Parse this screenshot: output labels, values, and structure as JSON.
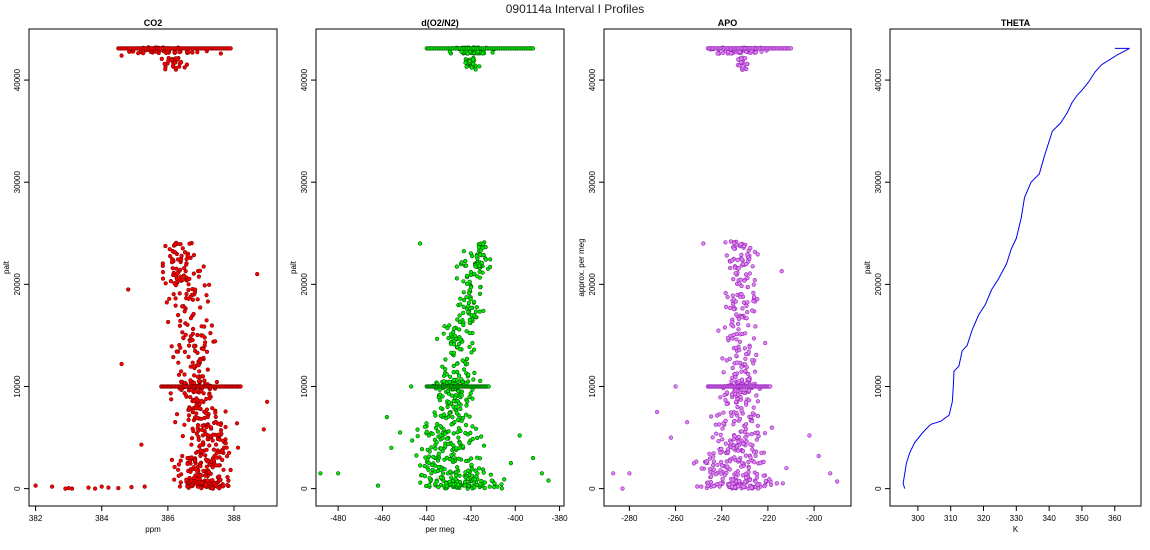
{
  "figure_title": "090114a   Interval I Profiles",
  "chart_data": [
    {
      "type": "scatter",
      "title": "CO2",
      "xlabel": "ppm",
      "ylabel": "palt",
      "xlim": [
        381.8,
        389.3
      ],
      "ylim": [
        -1700,
        45000
      ],
      "xticks": [
        382,
        384,
        386,
        388
      ],
      "yticks": [
        0,
        10000,
        20000,
        30000,
        40000
      ],
      "color": "#ff0000",
      "edge_color": "#7a0000",
      "clusters": [
        {
          "alt": [
            0,
            800
          ],
          "center": 387.1,
          "spread": 0.5,
          "n": 90
        },
        {
          "alt": [
            800,
            3000
          ],
          "center": 387.0,
          "spread": 0.6,
          "n": 80
        },
        {
          "alt": [
            3000,
            6500
          ],
          "center": 387.3,
          "spread": 0.6,
          "n": 90
        },
        {
          "alt": [
            6500,
            9500
          ],
          "center": 386.9,
          "spread": 0.5,
          "n": 60
        },
        {
          "alt": [
            9500,
            10500
          ],
          "center": 386.9,
          "spread": 0.5,
          "n": 40
        },
        {
          "alt": [
            10500,
            16000
          ],
          "center": 386.8,
          "spread": 0.5,
          "n": 70
        },
        {
          "alt": [
            16000,
            21000
          ],
          "center": 386.5,
          "spread": 0.5,
          "n": 60
        },
        {
          "alt": [
            21000,
            24200
          ],
          "center": 386.3,
          "spread": 0.5,
          "n": 50
        },
        {
          "alt": [
            41000,
            42200
          ],
          "center": 386.1,
          "spread": 0.3,
          "n": 25
        },
        {
          "alt": [
            42600,
            43200
          ],
          "center": 385.9,
          "spread": 0.8,
          "n": 70
        }
      ],
      "lines": [
        {
          "alt": 10000,
          "x_from": 385.8,
          "x_to": 388.2
        },
        {
          "alt": 43100,
          "x_from": 384.5,
          "x_to": 387.9
        }
      ],
      "extra_points": [
        {
          "x": 382.0,
          "y": 300
        },
        {
          "x": 382.5,
          "y": 200
        },
        {
          "x": 382.9,
          "y": 0
        },
        {
          "x": 383.0,
          "y": 50
        },
        {
          "x": 383.1,
          "y": 0
        },
        {
          "x": 383.6,
          "y": 100
        },
        {
          "x": 383.8,
          "y": 0
        },
        {
          "x": 384.0,
          "y": 200
        },
        {
          "x": 384.2,
          "y": 100
        },
        {
          "x": 384.5,
          "y": 50
        },
        {
          "x": 384.9,
          "y": 150
        },
        {
          "x": 385.3,
          "y": 200
        },
        {
          "x": 384.8,
          "y": 19500
        },
        {
          "x": 384.6,
          "y": 12200
        },
        {
          "x": 385.2,
          "y": 4300
        },
        {
          "x": 388.7,
          "y": 21000
        },
        {
          "x": 389.0,
          "y": 8500
        },
        {
          "x": 388.9,
          "y": 5800
        },
        {
          "x": 384.6,
          "y": 42400
        },
        {
          "x": 387.6,
          "y": 42600
        }
      ]
    },
    {
      "type": "scatter",
      "title": "d(O2/N2)",
      "xlabel": "per meg",
      "ylabel": "palt",
      "xlim": [
        -490,
        -378
      ],
      "ylim": [
        -1700,
        45000
      ],
      "xticks": [
        -480,
        -460,
        -440,
        -420,
        -400,
        -380
      ],
      "yticks": [
        0,
        10000,
        20000,
        30000,
        40000
      ],
      "color": "#00ee00",
      "edge_color": "#005500",
      "clusters": [
        {
          "alt": [
            0,
            800
          ],
          "center": -425,
          "spread": 12,
          "n": 80
        },
        {
          "alt": [
            800,
            3000
          ],
          "center": -428,
          "spread": 12,
          "n": 80
        },
        {
          "alt": [
            3000,
            6500
          ],
          "center": -430,
          "spread": 11,
          "n": 90
        },
        {
          "alt": [
            6500,
            9500
          ],
          "center": -428,
          "spread": 8,
          "n": 60
        },
        {
          "alt": [
            9500,
            10500
          ],
          "center": -428,
          "spread": 7,
          "n": 40
        },
        {
          "alt": [
            10500,
            16000
          ],
          "center": -426,
          "spread": 7,
          "n": 70
        },
        {
          "alt": [
            16000,
            21000
          ],
          "center": -420,
          "spread": 5,
          "n": 60
        },
        {
          "alt": [
            21000,
            24200
          ],
          "center": -418,
          "spread": 5,
          "n": 50
        },
        {
          "alt": [
            41000,
            42200
          ],
          "center": -420,
          "spread": 2,
          "n": 25
        },
        {
          "alt": [
            42600,
            43200
          ],
          "center": -420,
          "spread": 6,
          "n": 70
        }
      ],
      "lines": [
        {
          "alt": 10000,
          "x_from": -440,
          "x_to": -412
        },
        {
          "alt": 43100,
          "x_from": -440,
          "x_to": -392
        }
      ],
      "extra_points": [
        {
          "x": -488,
          "y": 1500
        },
        {
          "x": -480,
          "y": 1500
        },
        {
          "x": -462,
          "y": 300
        },
        {
          "x": -458,
          "y": 7000
        },
        {
          "x": -456,
          "y": 4000
        },
        {
          "x": -452,
          "y": 5500
        },
        {
          "x": -447,
          "y": 10000
        },
        {
          "x": -443,
          "y": 24000
        },
        {
          "x": -385,
          "y": 800
        },
        {
          "x": -388,
          "y": 1500
        },
        {
          "x": -392,
          "y": 3000
        },
        {
          "x": -398,
          "y": 5200
        },
        {
          "x": -402,
          "y": 2500
        },
        {
          "x": -405,
          "y": 900
        }
      ]
    },
    {
      "type": "scatter",
      "title": "APO",
      "xlabel": "",
      "ylabel": "approx. per meg",
      "xlim": [
        -291,
        -184
      ],
      "ylim": [
        -1700,
        45000
      ],
      "xticks": [
        -280,
        -260,
        -240,
        -220,
        -200
      ],
      "yticks": [
        0,
        10000,
        20000,
        30000,
        40000
      ],
      "color": "#dd88ee",
      "edge_color": "#9922bb",
      "clusters": [
        {
          "alt": [
            0,
            800
          ],
          "center": -232,
          "spread": 12,
          "n": 80
        },
        {
          "alt": [
            800,
            3000
          ],
          "center": -234,
          "spread": 12,
          "n": 80
        },
        {
          "alt": [
            3000,
            6500
          ],
          "center": -234,
          "spread": 10,
          "n": 90
        },
        {
          "alt": [
            6500,
            9500
          ],
          "center": -233,
          "spread": 7,
          "n": 60
        },
        {
          "alt": [
            9500,
            10500
          ],
          "center": -232,
          "spread": 6,
          "n": 40
        },
        {
          "alt": [
            10500,
            16000
          ],
          "center": -232,
          "spread": 6,
          "n": 70
        },
        {
          "alt": [
            16000,
            21000
          ],
          "center": -231,
          "spread": 5,
          "n": 60
        },
        {
          "alt": [
            21000,
            24200
          ],
          "center": -232,
          "spread": 6,
          "n": 50
        },
        {
          "alt": [
            41000,
            42200
          ],
          "center": -231,
          "spread": 2,
          "n": 25
        },
        {
          "alt": [
            42600,
            43200
          ],
          "center": -232,
          "spread": 8,
          "n": 70
        }
      ],
      "lines": [
        {
          "alt": 10000,
          "x_from": -246,
          "x_to": -219
        },
        {
          "alt": 43100,
          "x_from": -246,
          "x_to": -210
        }
      ],
      "extra_points": [
        {
          "x": -287,
          "y": 1500
        },
        {
          "x": -280,
          "y": 1500
        },
        {
          "x": -283,
          "y": 0
        },
        {
          "x": -268,
          "y": 7500
        },
        {
          "x": -262,
          "y": 5000
        },
        {
          "x": -255,
          "y": 6500
        },
        {
          "x": -260,
          "y": 10000
        },
        {
          "x": -248,
          "y": 24000
        },
        {
          "x": -190,
          "y": 700
        },
        {
          "x": -193,
          "y": 1500
        },
        {
          "x": -198,
          "y": 3200
        },
        {
          "x": -202,
          "y": 5200
        },
        {
          "x": -212,
          "y": 2000
        },
        {
          "x": -214,
          "y": 21300
        }
      ]
    },
    {
      "type": "line",
      "title": "THETA",
      "xlabel": "K",
      "ylabel": "palt",
      "xlim": [
        291.5,
        368
      ],
      "ylim": [
        -1700,
        45000
      ],
      "xticks": [
        300,
        310,
        320,
        330,
        340,
        350,
        360
      ],
      "yticks": [
        0,
        10000,
        20000,
        30000,
        40000
      ],
      "color": "#0000ee",
      "points": [
        [
          296.0,
          0
        ],
        [
          295.5,
          500
        ],
        [
          296.0,
          1500
        ],
        [
          296.5,
          2500
        ],
        [
          297.5,
          3500
        ],
        [
          299.0,
          4500
        ],
        [
          301.5,
          5500
        ],
        [
          303.0,
          6000
        ],
        [
          304.0,
          6300
        ],
        [
          307.0,
          6600
        ],
        [
          309.5,
          7200
        ],
        [
          310.5,
          8500
        ],
        [
          310.8,
          10000
        ],
        [
          311.0,
          11500
        ],
        [
          312.5,
          12000
        ],
        [
          313.5,
          13500
        ],
        [
          315.0,
          14000
        ],
        [
          316.5,
          15500
        ],
        [
          318.5,
          17000
        ],
        [
          320.5,
          18000
        ],
        [
          322.5,
          19500
        ],
        [
          324.5,
          20500
        ],
        [
          327.0,
          22000
        ],
        [
          328.5,
          23500
        ],
        [
          330.0,
          24500
        ],
        [
          331.5,
          26500
        ],
        [
          332.5,
          28500
        ],
        [
          334.5,
          30000
        ],
        [
          337.0,
          30800
        ],
        [
          338.5,
          32500
        ],
        [
          340.0,
          34000
        ],
        [
          341.0,
          35000
        ],
        [
          343.5,
          35800
        ],
        [
          345.5,
          36800
        ],
        [
          347.0,
          37800
        ],
        [
          348.5,
          38500
        ],
        [
          350.0,
          39000
        ],
        [
          352.0,
          39800
        ],
        [
          354.0,
          40800
        ],
        [
          356.0,
          41500
        ],
        [
          358.5,
          42000
        ],
        [
          361.0,
          42500
        ],
        [
          364.5,
          43100
        ],
        [
          360.0,
          43100
        ]
      ]
    }
  ]
}
